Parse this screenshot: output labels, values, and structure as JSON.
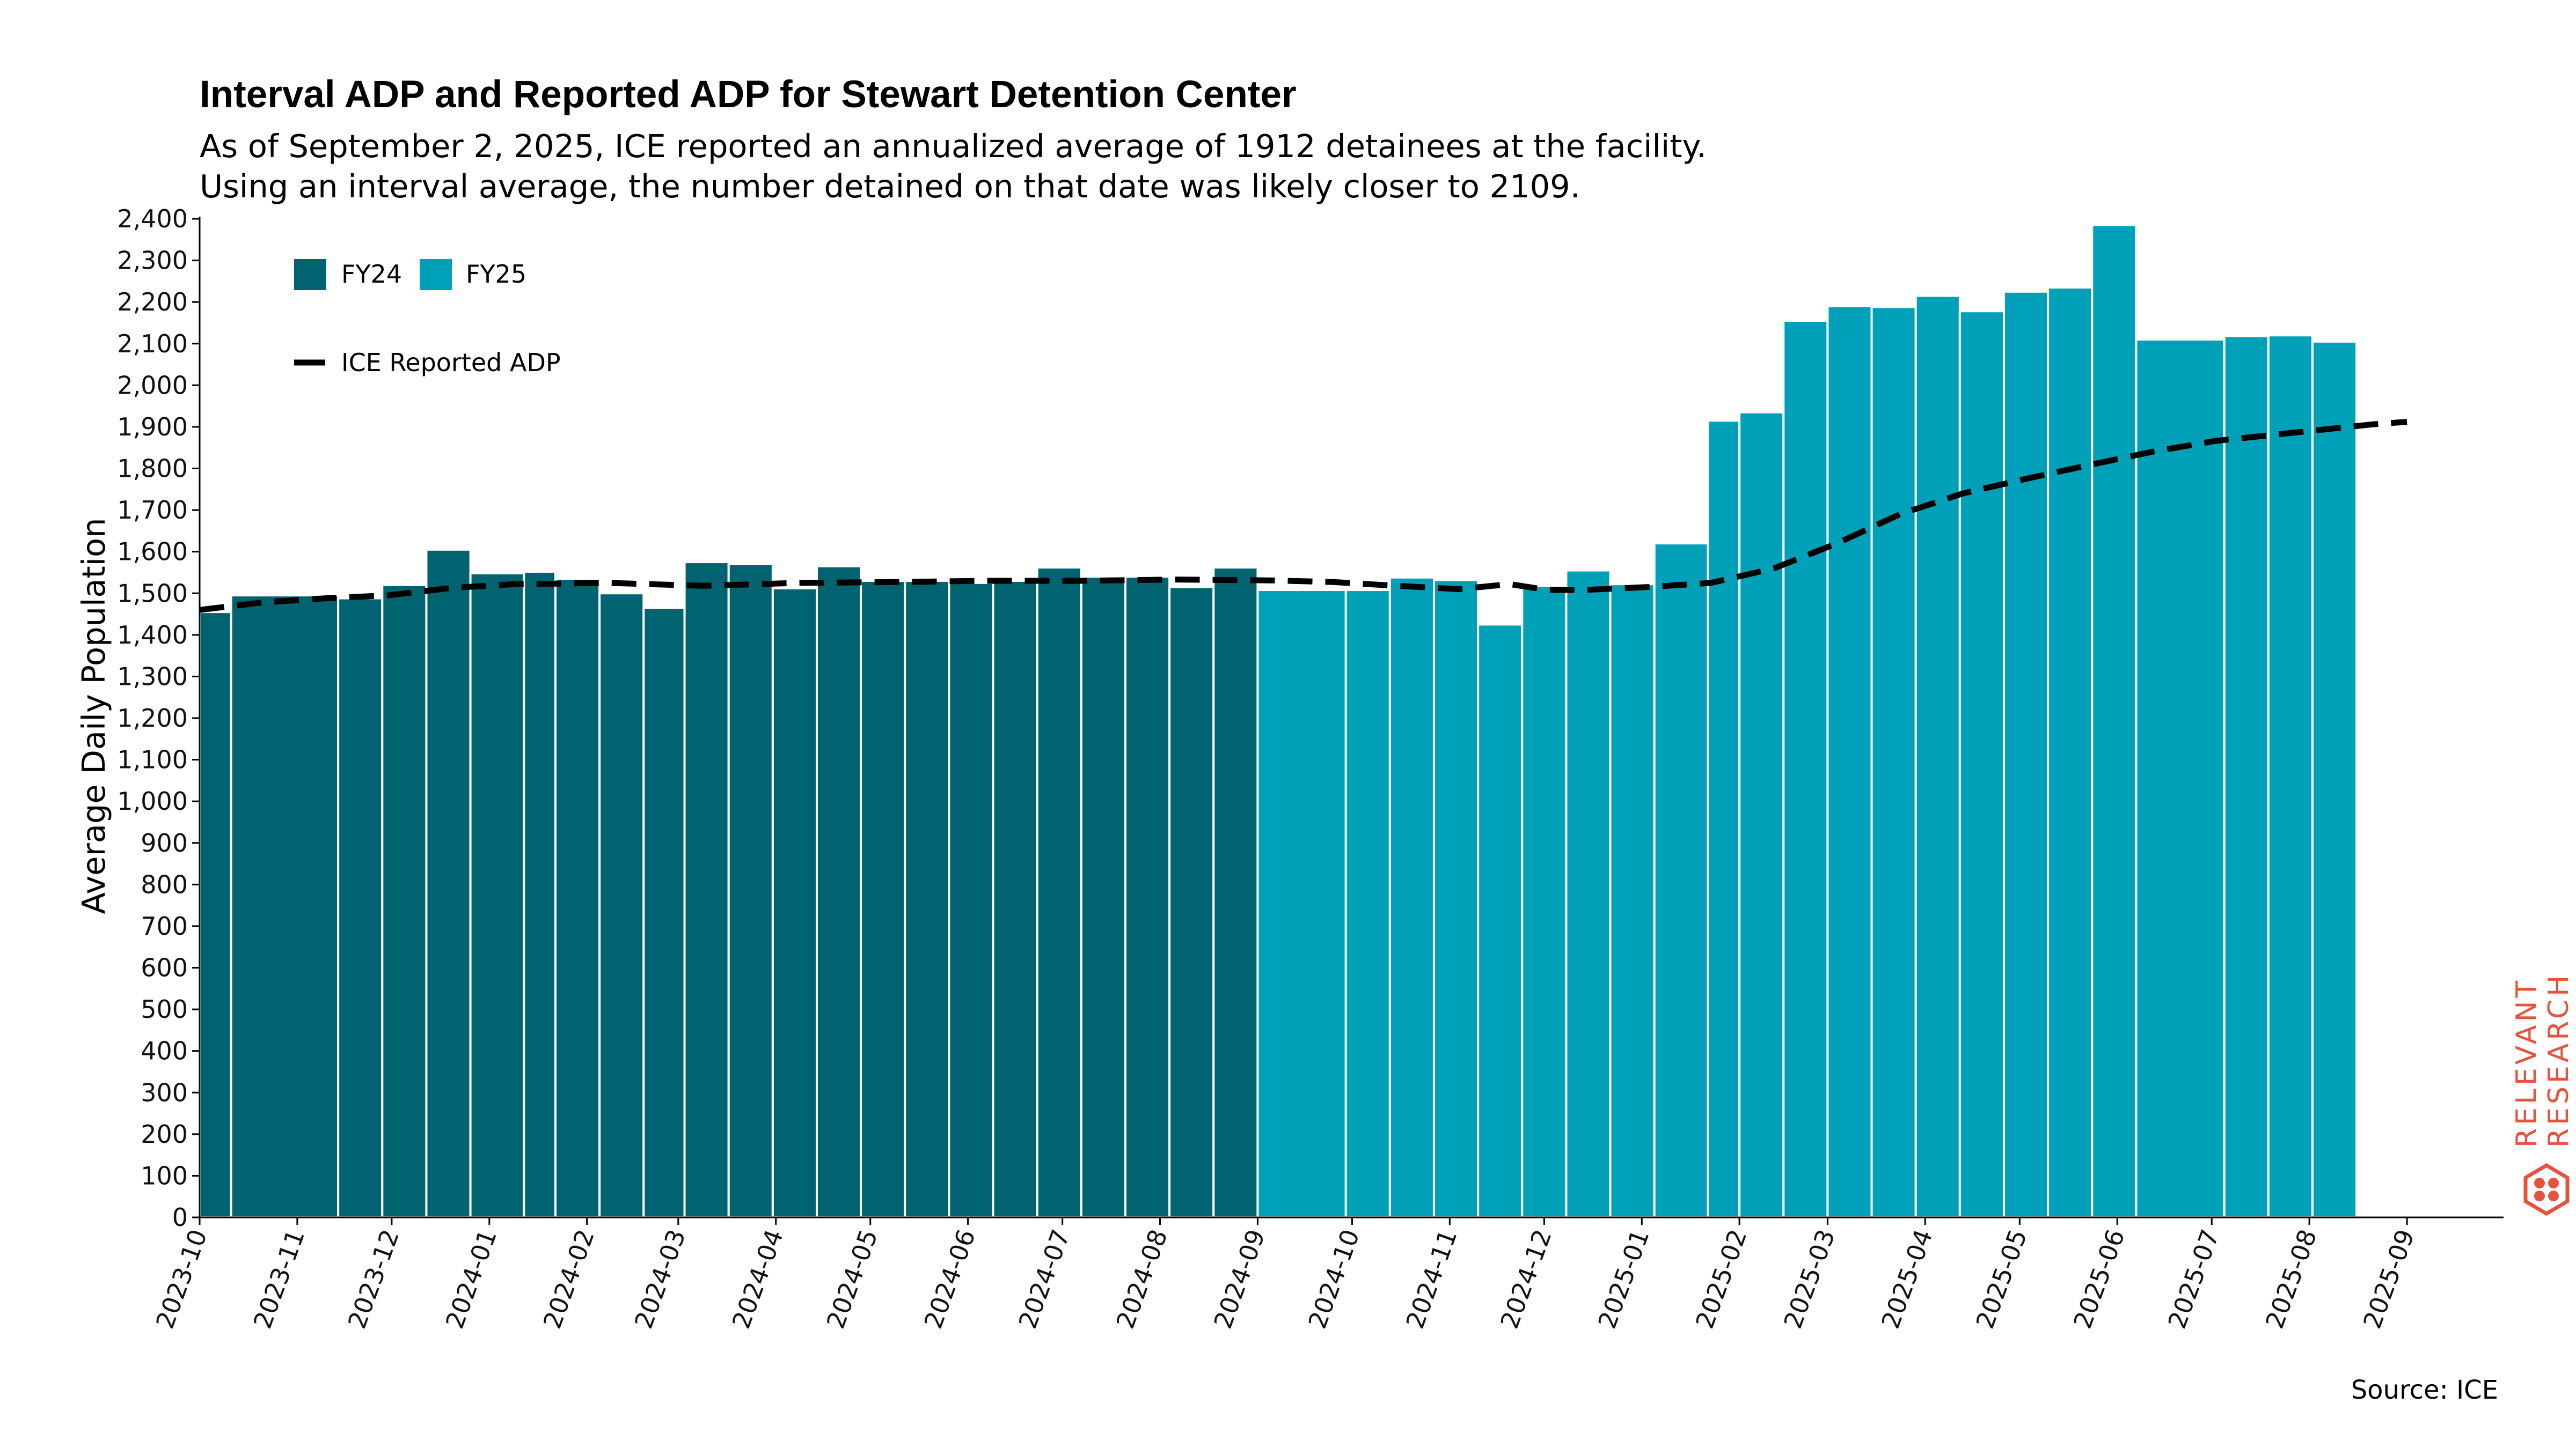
{
  "chart_data": {
    "type": "bar",
    "title": "Interval ADP and Reported ADP for Stewart Detention Center",
    "subtitle_lines": [
      "As of September 2, 2025, ICE reported an annualized average of 1912 detainees at the facility.",
      "Using an interval average, the number detained on that date was likely closer to 2109."
    ],
    "ylabel": "Average Daily Population",
    "xlabel": "",
    "ylim": [
      0,
      2400
    ],
    "y_ticks": [
      "0",
      "100",
      "200",
      "300",
      "400",
      "500",
      "600",
      "700",
      "800",
      "900",
      "1,000",
      "1,100",
      "1,200",
      "1,300",
      "1,400",
      "1,500",
      "1,600",
      "1,700",
      "1,800",
      "1,900",
      "2,000",
      "2,100",
      "2,200",
      "2,300",
      "2,400"
    ],
    "x_domain_days": 701,
    "x_ticks": [
      {
        "label": "2023-10",
        "day": 0
      },
      {
        "label": "2023-11",
        "day": 31
      },
      {
        "label": "2023-12",
        "day": 61
      },
      {
        "label": "2024-01",
        "day": 92
      },
      {
        "label": "2024-02",
        "day": 123
      },
      {
        "label": "2024-03",
        "day": 152
      },
      {
        "label": "2024-04",
        "day": 183
      },
      {
        "label": "2024-05",
        "day": 213
      },
      {
        "label": "2024-06",
        "day": 244
      },
      {
        "label": "2024-07",
        "day": 274
      },
      {
        "label": "2024-08",
        "day": 305
      },
      {
        "label": "2024-09",
        "day": 336
      },
      {
        "label": "2024-10",
        "day": 366
      },
      {
        "label": "2024-11",
        "day": 397
      },
      {
        "label": "2024-12",
        "day": 427
      },
      {
        "label": "2025-01",
        "day": 458
      },
      {
        "label": "2025-02",
        "day": 489
      },
      {
        "label": "2025-03",
        "day": 517
      },
      {
        "label": "2025-04",
        "day": 548
      },
      {
        "label": "2025-05",
        "day": 578
      },
      {
        "label": "2025-06",
        "day": 609
      },
      {
        "label": "2025-07",
        "day": 639
      },
      {
        "label": "2025-08",
        "day": 670
      },
      {
        "label": "2025-09",
        "day": 701
      }
    ],
    "series": [
      {
        "name": "FY24",
        "color": "#00636f",
        "intervals": [
          {
            "start": 0,
            "end": 10,
            "value": 1455
          },
          {
            "start": 10,
            "end": 44,
            "value": 1495
          },
          {
            "start": 44,
            "end": 58,
            "value": 1488
          },
          {
            "start": 58,
            "end": 72,
            "value": 1520
          },
          {
            "start": 72,
            "end": 86,
            "value": 1605
          },
          {
            "start": 86,
            "end": 103,
            "value": 1548
          },
          {
            "start": 103,
            "end": 113,
            "value": 1552
          },
          {
            "start": 113,
            "end": 127,
            "value": 1535
          },
          {
            "start": 127,
            "end": 141,
            "value": 1500
          },
          {
            "start": 141,
            "end": 154,
            "value": 1465
          },
          {
            "start": 154,
            "end": 168,
            "value": 1575
          },
          {
            "start": 168,
            "end": 182,
            "value": 1570
          },
          {
            "start": 182,
            "end": 196,
            "value": 1512
          },
          {
            "start": 196,
            "end": 210,
            "value": 1565
          },
          {
            "start": 210,
            "end": 224,
            "value": 1530
          },
          {
            "start": 224,
            "end": 238,
            "value": 1530
          },
          {
            "start": 238,
            "end": 252,
            "value": 1525
          },
          {
            "start": 252,
            "end": 266,
            "value": 1530
          },
          {
            "start": 266,
            "end": 280,
            "value": 1562
          },
          {
            "start": 280,
            "end": 294,
            "value": 1540
          },
          {
            "start": 294,
            "end": 308,
            "value": 1540
          },
          {
            "start": 308,
            "end": 322,
            "value": 1515
          },
          {
            "start": 322,
            "end": 336,
            "value": 1562
          }
        ]
      },
      {
        "name": "FY25",
        "color": "#00a1b8",
        "intervals": [
          {
            "start": 336,
            "end": 364,
            "value": 1508
          },
          {
            "start": 364,
            "end": 378,
            "value": 1508
          },
          {
            "start": 378,
            "end": 392,
            "value": 1538
          },
          {
            "start": 392,
            "end": 406,
            "value": 1532
          },
          {
            "start": 406,
            "end": 420,
            "value": 1425
          },
          {
            "start": 420,
            "end": 434,
            "value": 1518
          },
          {
            "start": 434,
            "end": 448,
            "value": 1555
          },
          {
            "start": 448,
            "end": 462,
            "value": 1522
          },
          {
            "start": 462,
            "end": 479,
            "value": 1620
          },
          {
            "start": 479,
            "end": 489,
            "value": 1915
          },
          {
            "start": 489,
            "end": 503,
            "value": 1935
          },
          {
            "start": 503,
            "end": 517,
            "value": 2155
          },
          {
            "start": 517,
            "end": 531,
            "value": 2190
          },
          {
            "start": 531,
            "end": 545,
            "value": 2188
          },
          {
            "start": 545,
            "end": 559,
            "value": 2215
          },
          {
            "start": 559,
            "end": 573,
            "value": 2178
          },
          {
            "start": 573,
            "end": 587,
            "value": 2225
          },
          {
            "start": 587,
            "end": 601,
            "value": 2235
          },
          {
            "start": 601,
            "end": 615,
            "value": 2385
          },
          {
            "start": 615,
            "end": 643,
            "value": 2110
          },
          {
            "start": 643,
            "end": 657,
            "value": 2118
          },
          {
            "start": 657,
            "end": 671,
            "value": 2120
          },
          {
            "start": 671,
            "end": 685,
            "value": 2105
          }
        ]
      }
    ],
    "line": {
      "name": "ICE Reported ADP",
      "color": "#000000",
      "points": [
        {
          "day": 0,
          "value": 1460
        },
        {
          "day": 20,
          "value": 1478
        },
        {
          "day": 40,
          "value": 1488
        },
        {
          "day": 60,
          "value": 1495
        },
        {
          "day": 80,
          "value": 1513
        },
        {
          "day": 100,
          "value": 1522
        },
        {
          "day": 130,
          "value": 1525
        },
        {
          "day": 160,
          "value": 1518
        },
        {
          "day": 190,
          "value": 1525
        },
        {
          "day": 220,
          "value": 1527
        },
        {
          "day": 250,
          "value": 1530
        },
        {
          "day": 280,
          "value": 1530
        },
        {
          "day": 310,
          "value": 1533
        },
        {
          "day": 340,
          "value": 1531
        },
        {
          "day": 360,
          "value": 1527
        },
        {
          "day": 380,
          "value": 1518
        },
        {
          "day": 400,
          "value": 1510
        },
        {
          "day": 416,
          "value": 1522
        },
        {
          "day": 428,
          "value": 1508
        },
        {
          "day": 440,
          "value": 1508
        },
        {
          "day": 460,
          "value": 1515
        },
        {
          "day": 480,
          "value": 1525
        },
        {
          "day": 500,
          "value": 1560
        },
        {
          "day": 520,
          "value": 1620
        },
        {
          "day": 540,
          "value": 1690
        },
        {
          "day": 560,
          "value": 1740
        },
        {
          "day": 580,
          "value": 1775
        },
        {
          "day": 600,
          "value": 1808
        },
        {
          "day": 620,
          "value": 1840
        },
        {
          "day": 640,
          "value": 1866
        },
        {
          "day": 660,
          "value": 1882
        },
        {
          "day": 680,
          "value": 1898
        },
        {
          "day": 690,
          "value": 1906
        },
        {
          "day": 701,
          "value": 1912
        }
      ]
    },
    "legend": {
      "placement": "top-left",
      "entries": [
        "FY24",
        "FY25",
        "ICE Reported ADP"
      ]
    },
    "source": "Source: ICE"
  },
  "brand": {
    "line1": "RELEVANT",
    "line2": "RESEARCH",
    "color": "#e5533d"
  }
}
